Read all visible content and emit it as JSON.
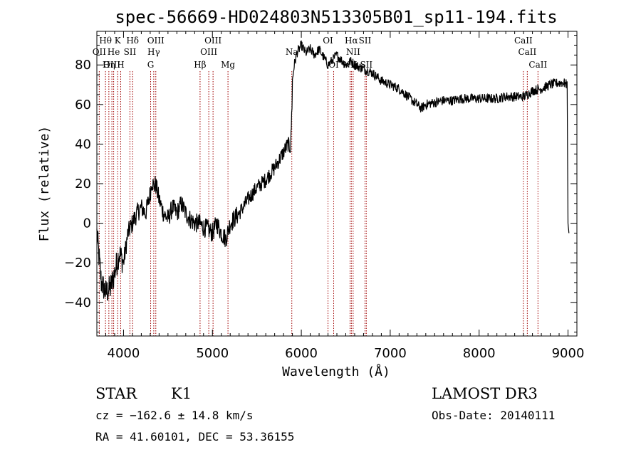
{
  "chart_data": {
    "type": "line",
    "title": "spec-56669-HD024803N513305B01_sp11-194.fits",
    "xlabel": "Wavelength (Å)",
    "ylabel": "Flux (relative)",
    "xlim": [
      3700,
      9100
    ],
    "ylim": [
      -57,
      97
    ],
    "x_ticks": [
      4000,
      5000,
      6000,
      7000,
      8000,
      9000
    ],
    "y_ticks": [
      -40,
      -20,
      0,
      20,
      40,
      60,
      80
    ],
    "grid": false,
    "spectrum": {
      "x": [
        3700,
        3750,
        3800,
        3850,
        3900,
        3950,
        4000,
        4050,
        4100,
        4150,
        4200,
        4250,
        4300,
        4320,
        4340,
        4360,
        4400,
        4450,
        4500,
        4550,
        4600,
        4650,
        4700,
        4750,
        4800,
        4850,
        4900,
        4950,
        5000,
        5050,
        5100,
        5150,
        5200,
        5300,
        5400,
        5500,
        5600,
        5700,
        5750,
        5800,
        5850,
        5880,
        5895,
        5900,
        5910,
        5920,
        5950,
        6000,
        6050,
        6100,
        6150,
        6200,
        6300,
        6400,
        6500,
        6560,
        6600,
        6700,
        6800,
        6900,
        7000,
        7100,
        7200,
        7300,
        7350,
        7400,
        7500,
        7600,
        7700,
        7800,
        7900,
        8000,
        8100,
        8200,
        8300,
        8400,
        8500,
        8540,
        8600,
        8700,
        8800,
        8900,
        8950,
        8990,
        9000,
        9010
      ],
      "y": [
        -5,
        -30,
        -35,
        -33,
        -25,
        -15,
        -20,
        -5,
        0,
        5,
        8,
        5,
        15,
        22,
        18,
        20,
        12,
        5,
        2,
        8,
        5,
        10,
        5,
        2,
        0,
        0,
        -2,
        -3,
        -5,
        0,
        -5,
        -8,
        0,
        5,
        12,
        18,
        22,
        28,
        32,
        36,
        40,
        38,
        60,
        72,
        76,
        80,
        86,
        90,
        86,
        88,
        85,
        88,
        80,
        85,
        80,
        82,
        80,
        78,
        76,
        72,
        70,
        68,
        64,
        60,
        58,
        60,
        61,
        62,
        62,
        63,
        63,
        63,
        63,
        63,
        64,
        64,
        64,
        65,
        67,
        68,
        70,
        71,
        71,
        70,
        0,
        -5
      ]
    },
    "spectral_lines": [
      {
        "label": "Hθ",
        "x": 3797,
        "row": 1
      },
      {
        "label": "OII",
        "x": 3727,
        "row": 2
      },
      {
        "label": "OIII",
        "x": 3869,
        "row": 3
      },
      {
        "label": "He",
        "x": 3889,
        "row": 2
      },
      {
        "label": "Hη",
        "x": 3835,
        "row": 3
      },
      {
        "label": "K",
        "x": 3934,
        "row": 1
      },
      {
        "label": "H",
        "x": 3968,
        "row": 3
      },
      {
        "label": "SII",
        "x": 4072,
        "row": 2
      },
      {
        "label": "Hδ",
        "x": 4102,
        "row": 1
      },
      {
        "label": "OIII",
        "x": 4363,
        "row": 1
      },
      {
        "label": "Hγ",
        "x": 4340,
        "row": 2
      },
      {
        "label": "G",
        "x": 4305,
        "row": 3
      },
      {
        "label": "Hβ",
        "x": 4861,
        "row": 3
      },
      {
        "label": "OIII",
        "x": 5007,
        "row": 1
      },
      {
        "label": "OIII",
        "x": 4959,
        "row": 2
      },
      {
        "label": "Mg",
        "x": 5175,
        "row": 3
      },
      {
        "label": "Na",
        "x": 5893,
        "row": 2
      },
      {
        "label": "OI",
        "x": 6300,
        "row": 1
      },
      {
        "label": "OI",
        "x": 6364,
        "row": 3
      },
      {
        "label": "Hα",
        "x": 6563,
        "row": 1
      },
      {
        "label": "NII",
        "x": 6548,
        "row": 3
      },
      {
        "label": "NII",
        "x": 6583,
        "row": 2
      },
      {
        "label": "SII",
        "x": 6716,
        "row": 1
      },
      {
        "label": "SII",
        "x": 6731,
        "row": 3
      },
      {
        "label": "CaII",
        "x": 8498,
        "row": 1
      },
      {
        "label": "CaII",
        "x": 8542,
        "row": 2
      },
      {
        "label": "CaII",
        "x": 8662,
        "row": 3
      }
    ]
  },
  "info": {
    "object_class": "STAR",
    "subclass": "K1",
    "survey": "LAMOST DR3",
    "cz": "cz = −162.6 ± 14.8 km/s",
    "obs_date": "Obs-Date: 20140111",
    "coords": "RA =  41.60101, DEC =  53.36155"
  }
}
